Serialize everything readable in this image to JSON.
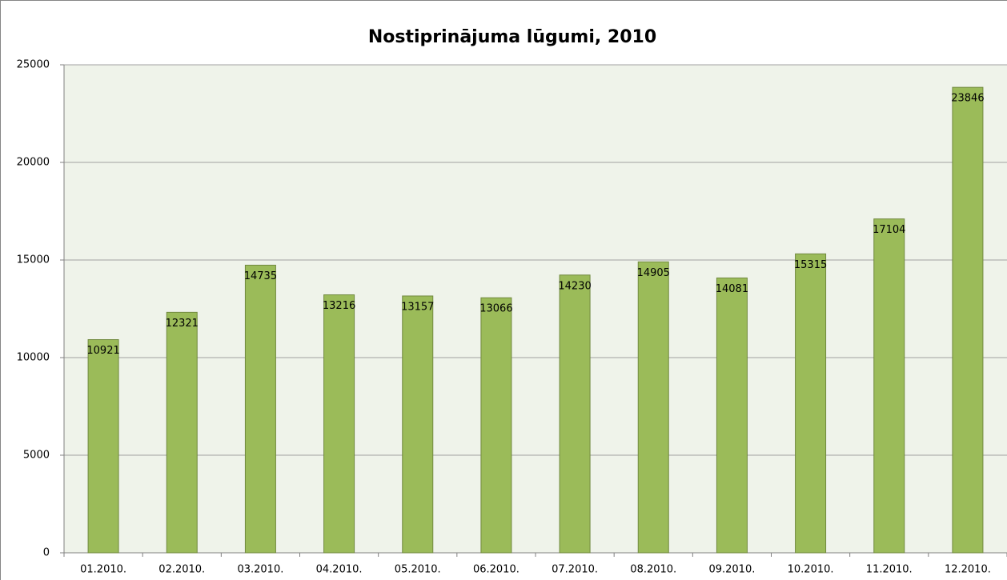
{
  "chart_data": {
    "type": "bar",
    "title": "Nostiprinājuma lūgumi, 2010",
    "categories": [
      "01.2010.",
      "02.2010.",
      "03.2010.",
      "04.2010.",
      "05.2010.",
      "06.2010.",
      "07.2010.",
      "08.2010.",
      "09.2010.",
      "10.2010.",
      "11.2010.",
      "12.2010."
    ],
    "values": [
      10921,
      12321,
      14735,
      13216,
      13157,
      13066,
      14230,
      14905,
      14081,
      15315,
      17104,
      23846
    ],
    "color": "#9bbb59",
    "ylim": [
      0,
      25000
    ],
    "yticks": [
      0,
      5000,
      10000,
      15000,
      20000,
      25000
    ],
    "grid": true
  }
}
